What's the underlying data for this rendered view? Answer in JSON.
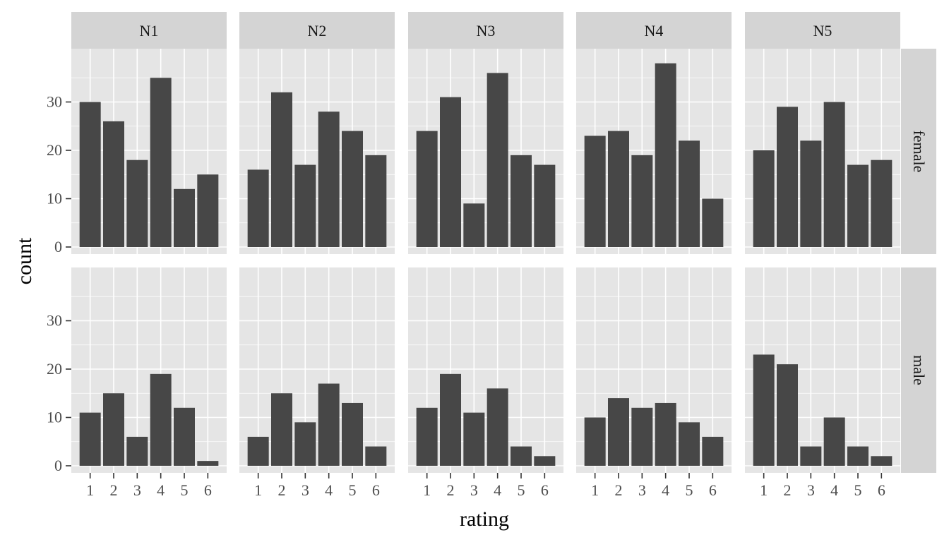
{
  "chart_data": {
    "type": "bar",
    "xlabel": "rating",
    "ylabel": "count",
    "categories": [
      "1",
      "2",
      "3",
      "4",
      "5",
      "6"
    ],
    "ylim": [
      0,
      40
    ],
    "y_ticks": [
      0,
      10,
      20,
      30
    ],
    "grid": true,
    "columns": [
      "N1",
      "N2",
      "N3",
      "N4",
      "N5"
    ],
    "rows": [
      "female",
      "male"
    ],
    "panels": [
      {
        "column": "N1",
        "row": "female",
        "values": [
          30,
          26,
          18,
          35,
          12,
          15
        ]
      },
      {
        "column": "N2",
        "row": "female",
        "values": [
          16,
          32,
          17,
          28,
          24,
          19
        ]
      },
      {
        "column": "N3",
        "row": "female",
        "values": [
          24,
          31,
          9,
          36,
          19,
          17
        ]
      },
      {
        "column": "N4",
        "row": "female",
        "values": [
          23,
          24,
          19,
          38,
          22,
          10
        ]
      },
      {
        "column": "N5",
        "row": "female",
        "values": [
          20,
          29,
          22,
          30,
          17,
          18
        ]
      },
      {
        "column": "N1",
        "row": "male",
        "values": [
          11,
          15,
          6,
          19,
          12,
          1
        ]
      },
      {
        "column": "N2",
        "row": "male",
        "values": [
          6,
          15,
          9,
          17,
          13,
          4
        ]
      },
      {
        "column": "N3",
        "row": "male",
        "values": [
          12,
          19,
          11,
          16,
          4,
          2
        ]
      },
      {
        "column": "N4",
        "row": "male",
        "values": [
          10,
          14,
          12,
          13,
          9,
          6
        ]
      },
      {
        "column": "N5",
        "row": "male",
        "values": [
          23,
          21,
          4,
          10,
          4,
          2
        ]
      }
    ],
    "colors": {
      "bar": "#474747",
      "panel_background": "#e5e5e5",
      "strip_background": "#d4d4d4",
      "grid": "#ffffff",
      "tick": "#333333",
      "tick_label": "#4d4d4d"
    }
  }
}
